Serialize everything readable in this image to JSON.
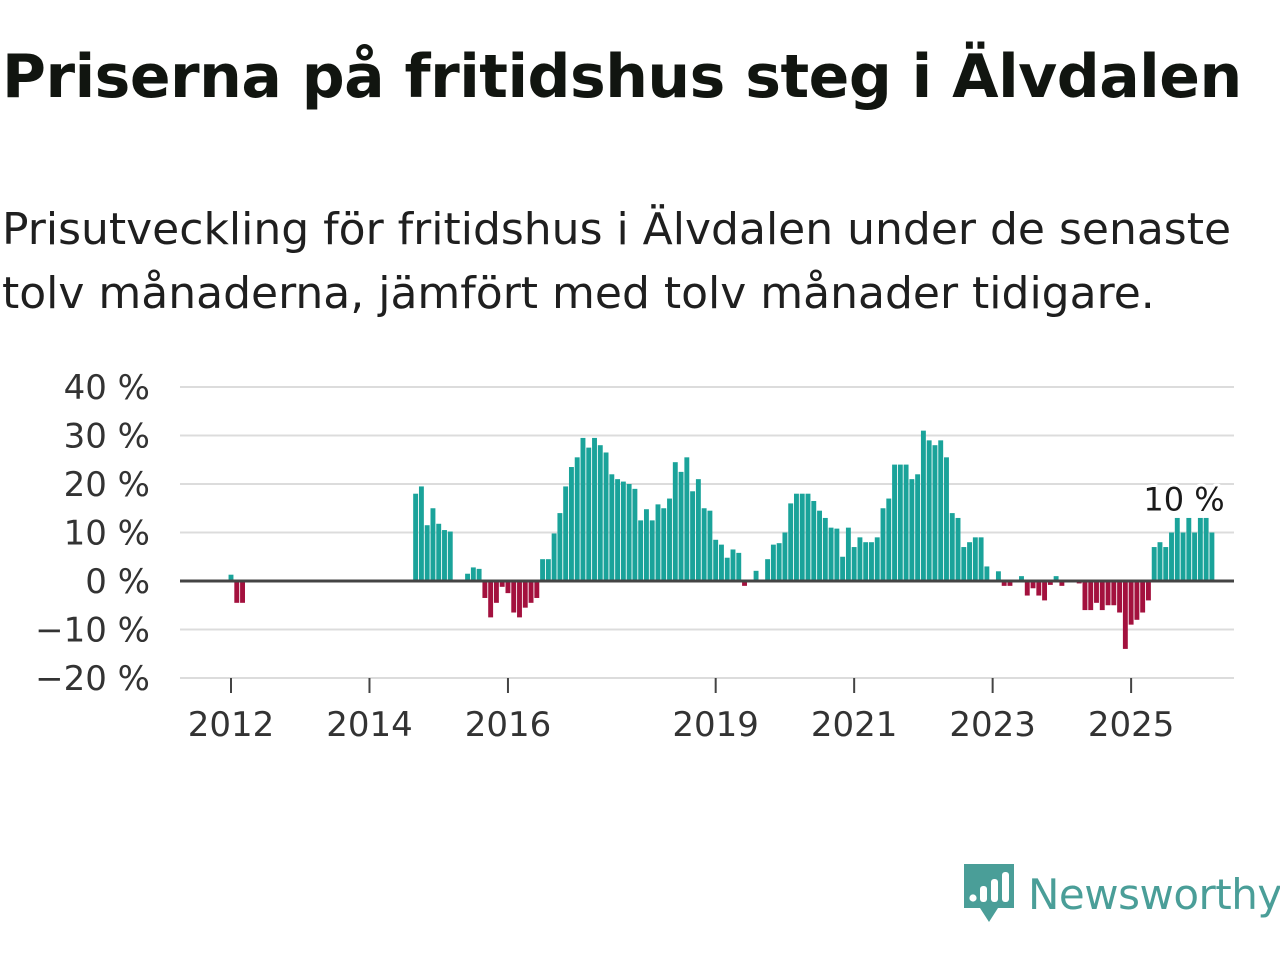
{
  "title": "Priserna på fritidshus steg i Älvdalen",
  "subtitle": "Prisutveckling för fritidshus i Älvdalen under de senaste tolv månaderna, jämfört med tolv månader tidigare.",
  "brand": {
    "name": "Newsworthy",
    "icon": "newsworthy-logo-icon",
    "color": "#4a9e98"
  },
  "chart_data": {
    "type": "bar",
    "title": "Priserna på fritidshus steg i Älvdalen",
    "xlabel": "",
    "ylabel": "",
    "ylim": [
      -20,
      40
    ],
    "y_ticks": [
      40,
      30,
      20,
      10,
      0,
      -10,
      -20
    ],
    "y_tick_labels": [
      "40 %",
      "30 %",
      "20 %",
      "10 %",
      "0 %",
      "−10 %",
      "−20 %"
    ],
    "x_tick_labels": [
      "2012",
      "2014",
      "2016",
      "2019",
      "2021",
      "2023",
      "2025"
    ],
    "x_tick_months": [
      0,
      24,
      48,
      84,
      108,
      132,
      156
    ],
    "start": "2012-01",
    "end": "2025-10",
    "positive_color": "#1aa39a",
    "negative_color": "#a3113e",
    "last_value_label": "10 %",
    "values": [
      1.3,
      -4.5,
      -4.5,
      0,
      0,
      0,
      0,
      0,
      0,
      0,
      0,
      0,
      0,
      0,
      0,
      0,
      0,
      0,
      0,
      0,
      0,
      0,
      0,
      0,
      0,
      0,
      0,
      0,
      0,
      0,
      0,
      0,
      18,
      19.5,
      11.5,
      15,
      11.8,
      10.5,
      10.2,
      0,
      0,
      1.5,
      2.8,
      2.5,
      -3.5,
      -7.5,
      -4.5,
      -1.2,
      -2.5,
      -6.5,
      -7.5,
      -5.5,
      -4.5,
      -3.5,
      4.5,
      4.5,
      9.8,
      14,
      19.5,
      23.5,
      25.5,
      29.5,
      27.5,
      29.5,
      28,
      26.5,
      22,
      21,
      20.5,
      20,
      19,
      12.5,
      14.8,
      12.5,
      15.8,
      15,
      17,
      24.5,
      22.5,
      25.5,
      18.5,
      21,
      15,
      14.5,
      8.5,
      7.5,
      4.8,
      6.5,
      5.8,
      -1,
      0,
      2.1,
      0,
      4.5,
      7.5,
      7.8,
      10,
      16,
      18,
      18,
      18,
      16.5,
      14.5,
      13,
      11,
      10.8,
      5,
      11,
      7,
      9,
      8,
      8,
      9,
      15,
      17,
      24,
      24,
      24,
      21,
      22,
      31,
      29,
      28,
      29,
      25.5,
      14,
      13,
      7,
      8,
      9,
      9,
      3,
      0,
      2,
      -1,
      -1,
      0,
      1,
      -3,
      -1.5,
      -3,
      -4,
      -0.8,
      1,
      -1,
      0,
      0,
      -0.5,
      -6,
      -6,
      -4.5,
      -6,
      -5,
      -5,
      -6.5,
      -14,
      -9,
      -8,
      -6.5,
      -4,
      7,
      8,
      7,
      10,
      13,
      10,
      13,
      10,
      13,
      13,
      10
    ]
  }
}
